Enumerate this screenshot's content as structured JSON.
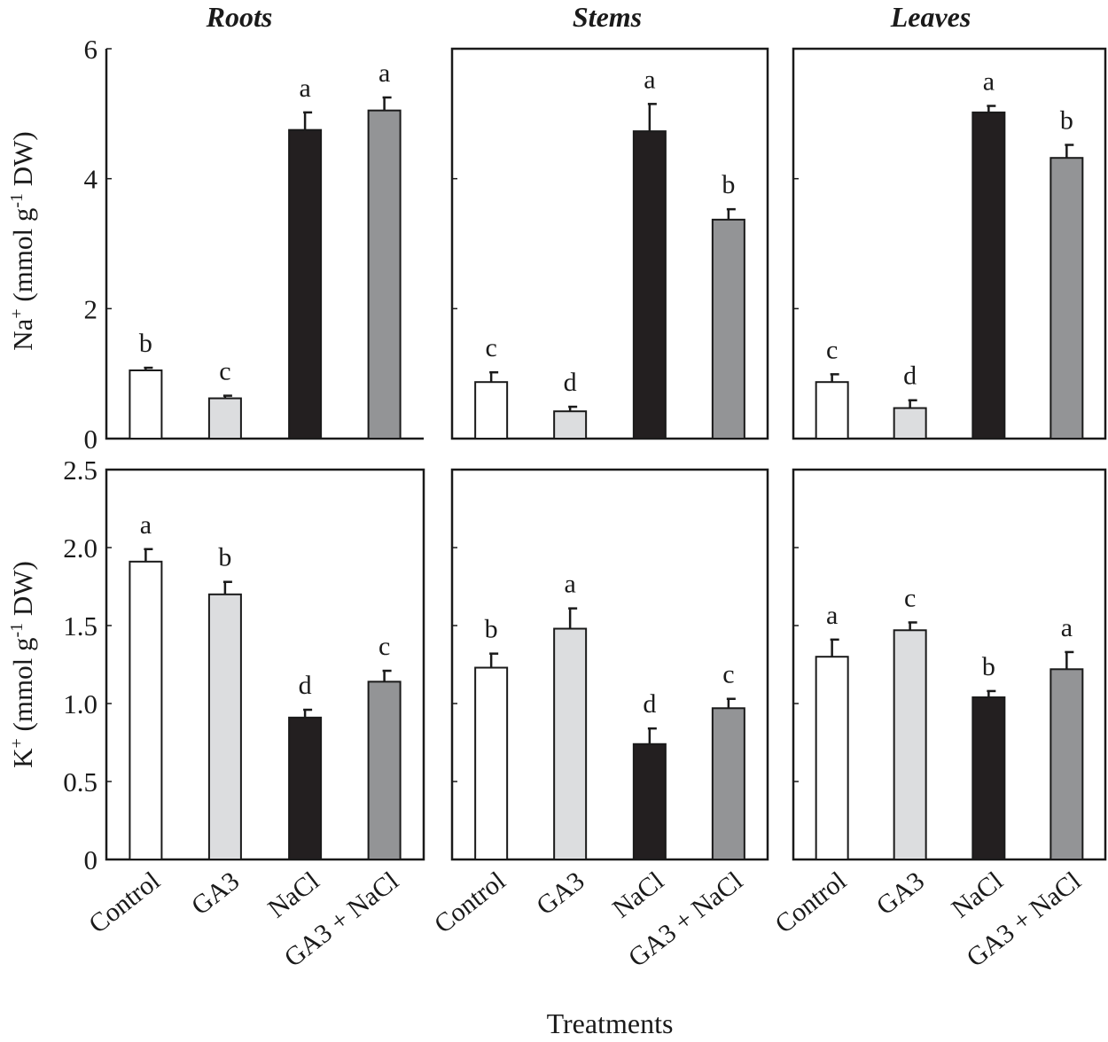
{
  "figure": {
    "xlabel": "Treatments",
    "columns": [
      "Roots",
      "Stems",
      "Leaves"
    ],
    "categories": [
      "Control",
      "GA3",
      "NaCl",
      "GA3 + NaCl"
    ],
    "bar_colors": [
      "#ffffff",
      "#dcdddf",
      "#231f20",
      "#939496"
    ]
  },
  "rows": [
    {
      "ylabel_main": "Na",
      "ylabel_sup": "+",
      "ylabel_rest": " (mmol g",
      "ylabel_sup2": "-1",
      "ylabel_end": " DW)",
      "ylim": [
        0,
        6
      ],
      "ticks": [
        0,
        2,
        4,
        6
      ],
      "tick_labels": [
        "0",
        "2",
        "4",
        "6"
      ]
    },
    {
      "ylabel_main": "K",
      "ylabel_sup": "+",
      "ylabel_rest": " (mmol g",
      "ylabel_sup2": "-1",
      "ylabel_end": " DW)",
      "ylim": [
        0,
        2.5
      ],
      "ticks": [
        0,
        0.5,
        1.0,
        1.5,
        2.0,
        2.5
      ],
      "tick_labels": [
        "0",
        "0.5",
        "1.0",
        "1.5",
        "2.0",
        "2.5"
      ]
    }
  ],
  "chart_data": [
    {
      "type": "bar",
      "row": 0,
      "col": 0,
      "title": "Roots",
      "ylabel": "Na+ (mmol g-1 DW)",
      "ylim": [
        0,
        6
      ],
      "categories": [
        "Control",
        "GA3",
        "NaCl",
        "GA3 + NaCl"
      ],
      "values": [
        1.05,
        0.62,
        4.75,
        5.05
      ],
      "errors": [
        0.04,
        0.04,
        0.27,
        0.2
      ],
      "letters": [
        "b",
        "c",
        "a",
        "a"
      ]
    },
    {
      "type": "bar",
      "row": 0,
      "col": 1,
      "title": "Stems",
      "ylabel": "Na+ (mmol g-1 DW)",
      "ylim": [
        0,
        6
      ],
      "categories": [
        "Control",
        "GA3",
        "NaCl",
        "GA3 + NaCl"
      ],
      "values": [
        0.87,
        0.42,
        4.73,
        3.37
      ],
      "errors": [
        0.15,
        0.07,
        0.42,
        0.16
      ],
      "letters": [
        "c",
        "d",
        "a",
        "b"
      ]
    },
    {
      "type": "bar",
      "row": 0,
      "col": 2,
      "title": "Leaves",
      "ylabel": "Na+ (mmol g-1 DW)",
      "ylim": [
        0,
        6
      ],
      "categories": [
        "Control",
        "GA3",
        "NaCl",
        "GA3 + NaCl"
      ],
      "values": [
        0.87,
        0.47,
        5.02,
        4.32
      ],
      "errors": [
        0.12,
        0.12,
        0.1,
        0.2
      ],
      "letters": [
        "c",
        "d",
        "a",
        "b"
      ]
    },
    {
      "type": "bar",
      "row": 1,
      "col": 0,
      "title": "Roots",
      "ylabel": "K+ (mmol g-1 DW)",
      "ylim": [
        0,
        2.5
      ],
      "categories": [
        "Control",
        "GA3",
        "NaCl",
        "GA3 + NaCl"
      ],
      "values": [
        1.91,
        1.7,
        0.91,
        1.14
      ],
      "errors": [
        0.08,
        0.08,
        0.05,
        0.07
      ],
      "letters": [
        "a",
        "b",
        "d",
        "c"
      ]
    },
    {
      "type": "bar",
      "row": 1,
      "col": 1,
      "title": "Stems",
      "ylabel": "K+ (mmol g-1 DW)",
      "ylim": [
        0,
        2.5
      ],
      "categories": [
        "Control",
        "GA3",
        "NaCl",
        "GA3 + NaCl"
      ],
      "values": [
        1.23,
        1.48,
        0.74,
        0.97
      ],
      "errors": [
        0.09,
        0.13,
        0.1,
        0.06
      ],
      "letters": [
        "b",
        "a",
        "d",
        "c"
      ]
    },
    {
      "type": "bar",
      "row": 1,
      "col": 2,
      "title": "Leaves",
      "ylabel": "K+ (mmol g-1 DW)",
      "ylim": [
        0,
        2.5
      ],
      "categories": [
        "Control",
        "GA3",
        "NaCl",
        "GA3 + NaCl"
      ],
      "values": [
        1.3,
        1.47,
        1.04,
        1.22
      ],
      "errors": [
        0.11,
        0.05,
        0.04,
        0.11
      ],
      "letters": [
        "a",
        "c",
        "b",
        "a"
      ]
    }
  ]
}
